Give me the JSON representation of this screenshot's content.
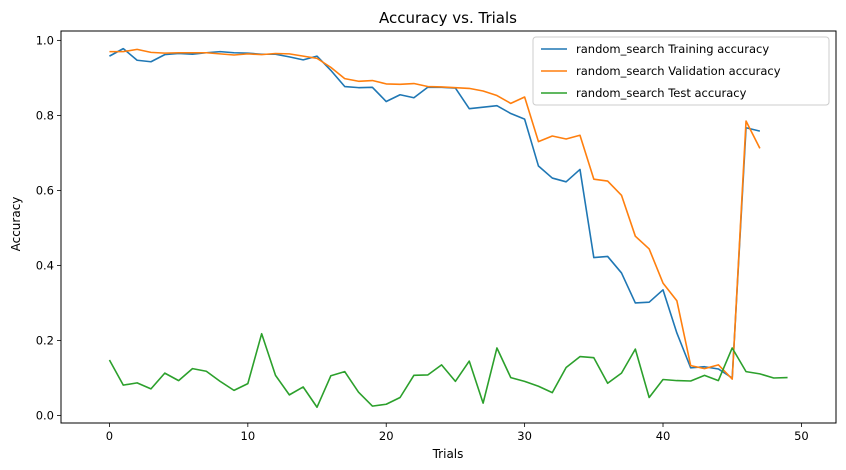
{
  "chart_data": {
    "type": "line",
    "title": "Accuracy vs. Trials",
    "xlabel": "Trials",
    "ylabel": "Accuracy",
    "xlim": [
      -3.5,
      52.5
    ],
    "ylim": [
      -0.02,
      1.025
    ],
    "xticks": [
      0,
      10,
      20,
      30,
      40,
      50
    ],
    "yticks": [
      0.0,
      0.2,
      0.4,
      0.6,
      0.8,
      1.0
    ],
    "xtick_labels": [
      "0",
      "10",
      "20",
      "30",
      "40",
      "50"
    ],
    "ytick_labels": [
      "0.0",
      "0.2",
      "0.4",
      "0.6",
      "0.8",
      "1.0"
    ],
    "grid": false,
    "legend_position": "top-right",
    "series": [
      {
        "name": "random_search Training accuracy",
        "color": "#1f77b4",
        "x": [
          0,
          1,
          2,
          3,
          4,
          5,
          6,
          7,
          8,
          9,
          10,
          11,
          12,
          13,
          14,
          15,
          16,
          17,
          18,
          19,
          20,
          21,
          22,
          23,
          24,
          25,
          26,
          27,
          28,
          29,
          30,
          31,
          32,
          33,
          34,
          35,
          36,
          37,
          38,
          39,
          40,
          41,
          42,
          43,
          44,
          45,
          46,
          47
        ],
        "values": [
          0.958,
          0.978,
          0.947,
          0.943,
          0.962,
          0.965,
          0.963,
          0.967,
          0.97,
          0.967,
          0.966,
          0.963,
          0.963,
          0.956,
          0.948,
          0.958,
          0.92,
          0.877,
          0.874,
          0.875,
          0.837,
          0.855,
          0.847,
          0.875,
          0.875,
          0.873,
          0.818,
          0.822,
          0.826,
          0.805,
          0.79,
          0.665,
          0.633,
          0.623,
          0.656,
          0.421,
          0.424,
          0.38,
          0.3,
          0.302,
          0.335,
          0.22,
          0.127,
          0.13,
          0.124,
          0.1,
          0.767,
          0.758
        ]
      },
      {
        "name": "random_search Validation accuracy",
        "color": "#ff7f0e",
        "x": [
          0,
          1,
          2,
          3,
          4,
          5,
          6,
          7,
          8,
          9,
          10,
          11,
          12,
          13,
          14,
          15,
          16,
          17,
          18,
          19,
          20,
          21,
          22,
          23,
          24,
          25,
          26,
          27,
          28,
          29,
          30,
          31,
          32,
          33,
          34,
          35,
          36,
          37,
          38,
          39,
          40,
          41,
          42,
          43,
          44,
          45,
          46,
          47
        ],
        "values": [
          0.97,
          0.97,
          0.976,
          0.968,
          0.966,
          0.967,
          0.967,
          0.967,
          0.964,
          0.961,
          0.964,
          0.962,
          0.965,
          0.964,
          0.958,
          0.952,
          0.928,
          0.898,
          0.891,
          0.893,
          0.884,
          0.883,
          0.885,
          0.877,
          0.876,
          0.874,
          0.872,
          0.865,
          0.853,
          0.832,
          0.849,
          0.73,
          0.745,
          0.737,
          0.747,
          0.63,
          0.625,
          0.587,
          0.478,
          0.444,
          0.353,
          0.306,
          0.133,
          0.125,
          0.135,
          0.097,
          0.785,
          0.712
        ]
      },
      {
        "name": "random_search Test accuracy",
        "color": "#2ca02c",
        "x": [
          0,
          1,
          2,
          3,
          4,
          5,
          6,
          7,
          8,
          9,
          10,
          11,
          12,
          13,
          14,
          15,
          16,
          17,
          18,
          19,
          20,
          21,
          22,
          23,
          24,
          25,
          26,
          27,
          28,
          29,
          30,
          31,
          32,
          33,
          34,
          35,
          36,
          37,
          38,
          39,
          40,
          41,
          42,
          43,
          44,
          45,
          46,
          47,
          48,
          49
        ],
        "values": [
          0.148,
          0.081,
          0.087,
          0.071,
          0.113,
          0.093,
          0.125,
          0.118,
          0.091,
          0.067,
          0.085,
          0.218,
          0.107,
          0.055,
          0.076,
          0.022,
          0.106,
          0.117,
          0.062,
          0.025,
          0.03,
          0.048,
          0.107,
          0.108,
          0.135,
          0.091,
          0.145,
          0.033,
          0.18,
          0.101,
          0.091,
          0.078,
          0.061,
          0.128,
          0.157,
          0.154,
          0.086,
          0.113,
          0.177,
          0.048,
          0.096,
          0.093,
          0.092,
          0.107,
          0.093,
          0.18,
          0.117,
          0.111,
          0.1,
          0.101
        ]
      }
    ]
  }
}
